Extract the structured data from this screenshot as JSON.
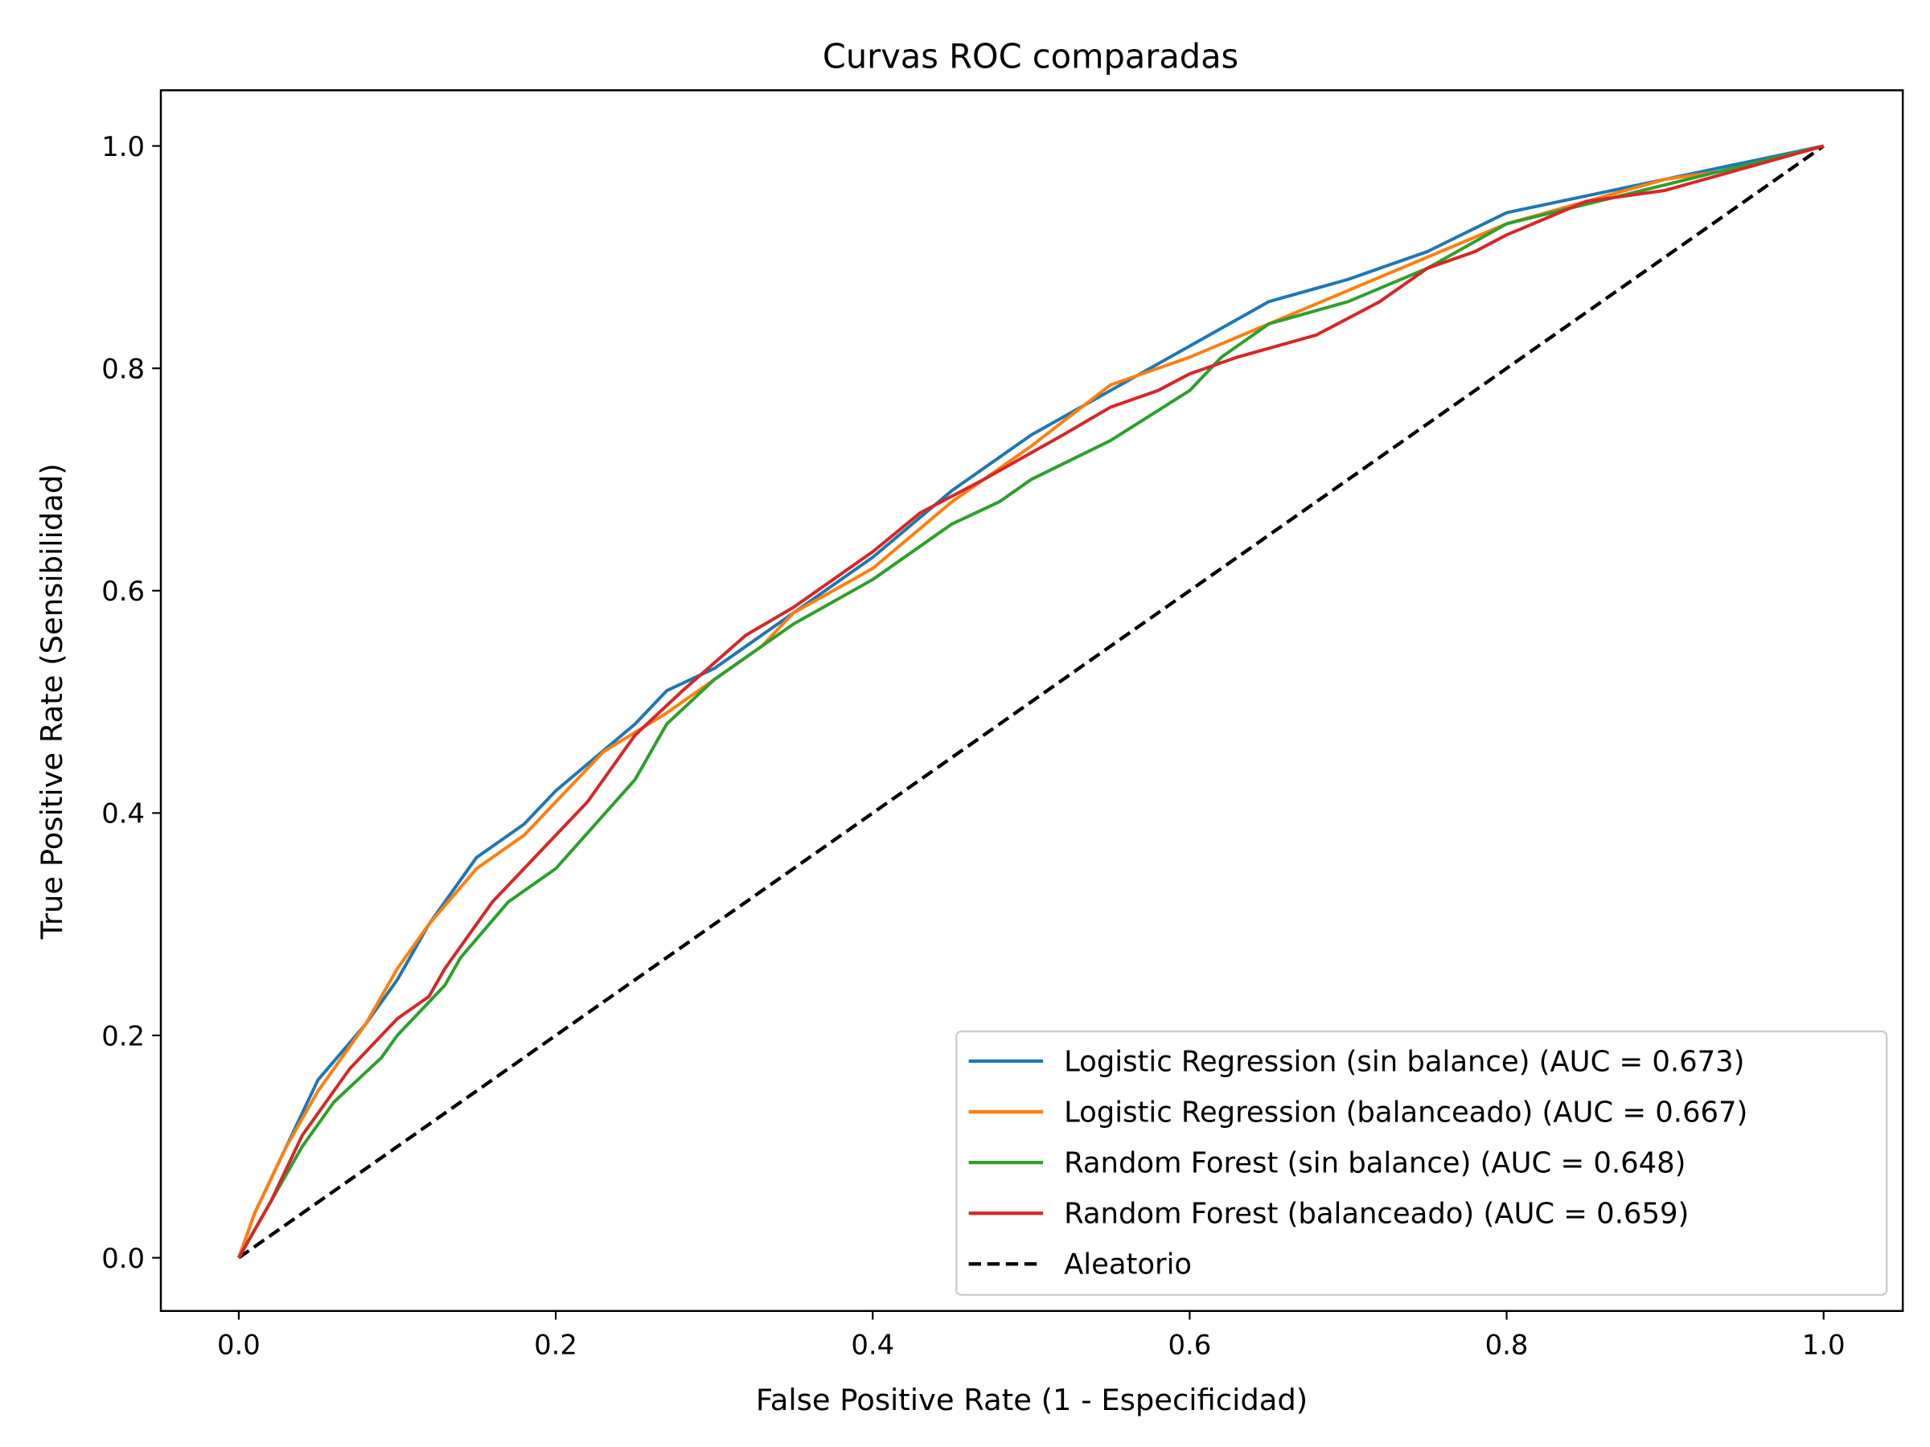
{
  "chart_data": {
    "type": "line",
    "title": "Curvas ROC comparadas",
    "xlabel": "False Positive Rate (1 - Especificidad)",
    "ylabel": "True Positive Rate (Sensibilidad)",
    "xlim": [
      -0.05,
      1.05
    ],
    "ylim": [
      -0.05,
      1.05
    ],
    "xticks": [
      "0.0",
      "0.2",
      "0.4",
      "0.6",
      "0.8",
      "1.0"
    ],
    "yticks": [
      "0.0",
      "0.2",
      "0.4",
      "0.6",
      "0.8",
      "1.0"
    ],
    "grid": false,
    "legend_position": "lower-right",
    "series": [
      {
        "name": "Logistic Regression (sin balance) (AUC = 0.673)",
        "color": "#1f77b4",
        "style": "solid",
        "x": [
          0,
          0.01,
          0.03,
          0.05,
          0.08,
          0.1,
          0.12,
          0.15,
          0.18,
          0.2,
          0.25,
          0.27,
          0.3,
          0.35,
          0.4,
          0.45,
          0.5,
          0.55,
          0.6,
          0.65,
          0.7,
          0.75,
          0.8,
          0.85,
          0.9,
          0.95,
          1
        ],
        "y": [
          0,
          0.04,
          0.1,
          0.16,
          0.21,
          0.25,
          0.3,
          0.36,
          0.39,
          0.42,
          0.48,
          0.51,
          0.53,
          0.58,
          0.63,
          0.69,
          0.74,
          0.78,
          0.82,
          0.86,
          0.88,
          0.905,
          0.94,
          0.955,
          0.97,
          0.985,
          1
        ]
      },
      {
        "name": "Logistic Regression (balanceado) (AUC = 0.667)",
        "color": "#ff7f0e",
        "style": "solid",
        "x": [
          0,
          0.01,
          0.03,
          0.05,
          0.08,
          0.1,
          0.12,
          0.15,
          0.18,
          0.2,
          0.23,
          0.27,
          0.3,
          0.33,
          0.35,
          0.4,
          0.45,
          0.5,
          0.55,
          0.6,
          0.65,
          0.7,
          0.75,
          0.8,
          0.85,
          0.9,
          0.95,
          1
        ],
        "y": [
          0,
          0.04,
          0.1,
          0.15,
          0.21,
          0.26,
          0.3,
          0.35,
          0.38,
          0.41,
          0.455,
          0.49,
          0.52,
          0.55,
          0.58,
          0.62,
          0.68,
          0.73,
          0.785,
          0.81,
          0.84,
          0.87,
          0.9,
          0.93,
          0.95,
          0.97,
          0.98,
          1
        ]
      },
      {
        "name": "Random Forest (sin balance) (AUC = 0.648)",
        "color": "#2ca02c",
        "style": "solid",
        "x": [
          0,
          0.02,
          0.04,
          0.06,
          0.09,
          0.1,
          0.13,
          0.14,
          0.17,
          0.2,
          0.25,
          0.27,
          0.3,
          0.35,
          0.4,
          0.43,
          0.45,
          0.48,
          0.5,
          0.55,
          0.6,
          0.62,
          0.65,
          0.7,
          0.75,
          0.8,
          0.9,
          1
        ],
        "y": [
          0,
          0.05,
          0.1,
          0.14,
          0.18,
          0.2,
          0.245,
          0.27,
          0.32,
          0.35,
          0.43,
          0.48,
          0.52,
          0.57,
          0.61,
          0.64,
          0.66,
          0.68,
          0.7,
          0.735,
          0.78,
          0.81,
          0.84,
          0.86,
          0.89,
          0.93,
          0.965,
          1
        ]
      },
      {
        "name": "Random Forest (balanceado) (AUC = 0.659)",
        "color": "#d62728",
        "style": "solid",
        "x": [
          0,
          0.02,
          0.04,
          0.07,
          0.1,
          0.12,
          0.13,
          0.16,
          0.2,
          0.22,
          0.25,
          0.28,
          0.32,
          0.35,
          0.4,
          0.43,
          0.47,
          0.52,
          0.55,
          0.58,
          0.6,
          0.63,
          0.68,
          0.72,
          0.75,
          0.78,
          0.8,
          0.85,
          0.9,
          0.95,
          1
        ],
        "y": [
          0,
          0.05,
          0.11,
          0.17,
          0.215,
          0.235,
          0.26,
          0.32,
          0.38,
          0.41,
          0.47,
          0.51,
          0.56,
          0.585,
          0.635,
          0.67,
          0.7,
          0.74,
          0.765,
          0.78,
          0.795,
          0.81,
          0.83,
          0.86,
          0.89,
          0.905,
          0.92,
          0.95,
          0.96,
          0.98,
          1
        ]
      },
      {
        "name": "Aleatorio",
        "color": "#000000",
        "style": "dashed",
        "x": [
          0,
          1
        ],
        "y": [
          0,
          1
        ]
      }
    ]
  }
}
